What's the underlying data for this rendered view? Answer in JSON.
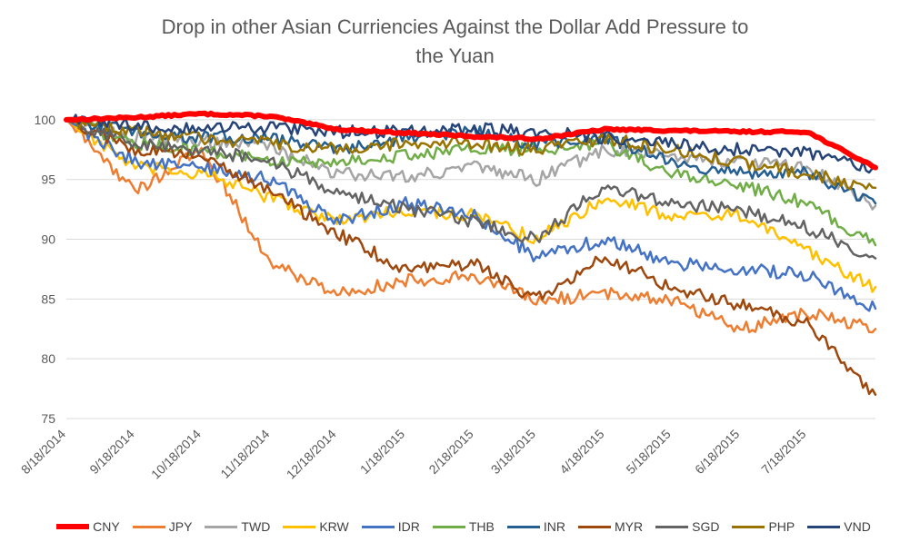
{
  "chart_data": {
    "type": "line",
    "title_lines": [
      "Drop in other Asian Curriencies Against the Dollar Add Pressure to",
      "the Yuan"
    ],
    "x_labels": [
      "8/18/2014",
      "9/18/2014",
      "10/18/2014",
      "11/18/2014",
      "12/18/2014",
      "1/18/2015",
      "2/18/2015",
      "3/18/2015",
      "4/18/2015",
      "5/18/2015",
      "6/18/2015",
      "7/18/2015"
    ],
    "y_ticks": [
      75,
      80,
      85,
      90,
      95,
      100
    ],
    "ylim": [
      75,
      102.5
    ],
    "grid": true,
    "legend_position": "bottom",
    "x_dates": [
      "2014-08-18",
      "2014-09-18",
      "2014-10-18",
      "2014-11-18",
      "2014-12-18",
      "2015-01-18",
      "2015-02-18",
      "2015-03-18",
      "2015-04-18",
      "2015-05-18",
      "2015-06-18",
      "2015-07-18",
      "2015-08-18"
    ],
    "series": [
      {
        "name": "CNY",
        "color": "#ff0000",
        "width": 6,
        "values": [
          100,
          100.2,
          100.5,
          100.3,
          99.2,
          98.9,
          98.6,
          98.4,
          99.2,
          99.1,
          99.0,
          99.0,
          96.0
        ]
      },
      {
        "name": "JPY",
        "color": "#ed7d31",
        "width": 2.5,
        "values": [
          100,
          94.0,
          97.5,
          88.0,
          85.5,
          86.5,
          87.0,
          84.8,
          85.5,
          85.0,
          82.5,
          83.8,
          82.5
        ]
      },
      {
        "name": "TWD",
        "color": "#a5a5a5",
        "width": 2.5,
        "values": [
          100,
          98.5,
          98.3,
          97.8,
          95.5,
          95.3,
          96.0,
          95.0,
          97.5,
          97.0,
          96.5,
          96.0,
          92.8
        ]
      },
      {
        "name": "KRW",
        "color": "#ffc000",
        "width": 2.5,
        "values": [
          100,
          96.0,
          95.5,
          93.5,
          91.5,
          92.5,
          92.0,
          90.0,
          93.5,
          92.0,
          92.0,
          89.0,
          86.0
        ]
      },
      {
        "name": "IDR",
        "color": "#4472c4",
        "width": 2.5,
        "values": [
          100,
          96.5,
          96.0,
          95.0,
          91.5,
          93.0,
          92.0,
          88.5,
          90.0,
          88.0,
          87.5,
          87.0,
          84.2
        ]
      },
      {
        "name": "THB",
        "color": "#70ad47",
        "width": 2.5,
        "values": [
          100,
          98.0,
          97.5,
          96.5,
          96.5,
          97.0,
          97.5,
          97.5,
          98.0,
          95.5,
          94.5,
          93.0,
          89.5
        ]
      },
      {
        "name": "INR",
        "color": "#255e91",
        "width": 2.5,
        "values": [
          100,
          99.0,
          98.5,
          98.5,
          97.5,
          98.5,
          99.0,
          98.0,
          98.5,
          96.5,
          95.5,
          95.5,
          93.0
        ]
      },
      {
        "name": "MYR",
        "color": "#9e480e",
        "width": 2.5,
        "values": [
          100,
          97.5,
          97.0,
          94.0,
          90.5,
          87.5,
          88.0,
          85.0,
          88.5,
          86.0,
          84.5,
          83.0,
          77.0
        ]
      },
      {
        "name": "SGD",
        "color": "#636363",
        "width": 2.5,
        "values": [
          100,
          98.0,
          97.5,
          96.5,
          94.0,
          92.5,
          91.5,
          90.0,
          94.5,
          93.0,
          92.5,
          91.0,
          88.4
        ]
      },
      {
        "name": "PHP",
        "color": "#997300",
        "width": 2.5,
        "values": [
          100,
          99.0,
          98.5,
          98.0,
          97.5,
          98.0,
          98.0,
          97.5,
          98.5,
          97.5,
          96.5,
          95.5,
          94.3
        ]
      },
      {
        "name": "VND",
        "color": "#264478",
        "width": 2.5,
        "values": [
          100,
          99.5,
          99.3,
          99.3,
          99.0,
          99.0,
          99.2,
          99.0,
          98.5,
          98.0,
          97.5,
          97.3,
          96.0
        ]
      }
    ]
  }
}
